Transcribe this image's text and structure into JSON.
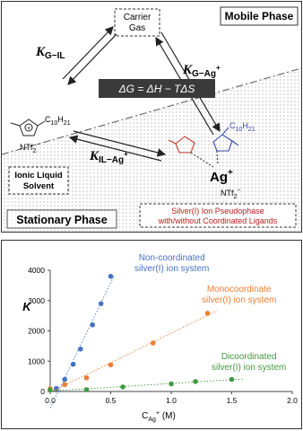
{
  "diagram": {
    "mobile_phase": "Mobile Phase",
    "carrier_gas": "Carrier",
    "carrier_gas_2": "Gas",
    "k_g_il": {
      "symbol": "K",
      "sub": "G−IL"
    },
    "k_g_ag": {
      "symbol": "K",
      "sub": "G−Ag",
      "sup": "+"
    },
    "k_il_ag": {
      "symbol": "K",
      "sub": "IL−Ag",
      "sup": "+"
    },
    "equation": "ΔG = ΔH − TΔS",
    "il_chain": [
      "C",
      "10",
      "H",
      "21"
    ],
    "il_anion": {
      "base": "NTf",
      "sub": "2",
      "sup": "−"
    },
    "il_solvent": "Ionic Liquid",
    "il_solvent_2": "Solvent",
    "ag_chain": [
      "C",
      "10",
      "H",
      "21"
    ],
    "ag_ion": {
      "base": "Ag",
      "sup": "+"
    },
    "ag_anion": {
      "base": "NTf",
      "sub": "2",
      "sup": "−"
    },
    "stationary_phase": "Stationary Phase",
    "pseudophase": "Silver(I) Ion Pseudophase",
    "pseudophase_2": "with/without Coordinated Ligands"
  },
  "chart_data": {
    "type": "scatter",
    "ylabel": "K",
    "xlabel": {
      "base": "C",
      "sub": "Ag",
      "sup": "+",
      "unit": " (M)"
    },
    "xlim": [
      0,
      2
    ],
    "xticks": [
      {
        "value": 0,
        "label": "0.0"
      },
      {
        "value": 0.5,
        "label": "0.5"
      },
      {
        "value": 1,
        "label": "1.0"
      },
      {
        "value": 1.5,
        "label": "1.5"
      },
      {
        "value": 2,
        "label": "2.0"
      }
    ],
    "ylim": [
      0,
      4000
    ],
    "yticks": [
      0,
      1000,
      2000,
      3000,
      4000
    ],
    "trendlines": true,
    "series": [
      {
        "name": "Non-coordinated\nsilver(I) ion system",
        "color": "#4472c4",
        "x": [
          0.05,
          0.12,
          0.19,
          0.25,
          0.35,
          0.42,
          0.5
        ],
        "values": [
          100,
          400,
          900,
          1400,
          2200,
          2900,
          3800
        ]
      },
      {
        "name": "Monocoordinate\nsilver(I) ion system",
        "color": "#ed7d31",
        "x": [
          0.0,
          0.12,
          0.3,
          0.5,
          0.85,
          1.3
        ],
        "values": [
          90,
          230,
          450,
          880,
          1600,
          2580
        ]
      },
      {
        "name": "Dicoordinated\nsilver(I) ion system",
        "color": "#3f9a3f",
        "x": [
          0.0,
          0.3,
          0.6,
          1.0,
          1.2,
          1.5
        ],
        "values": [
          50,
          60,
          150,
          250,
          330,
          400
        ]
      }
    ]
  }
}
